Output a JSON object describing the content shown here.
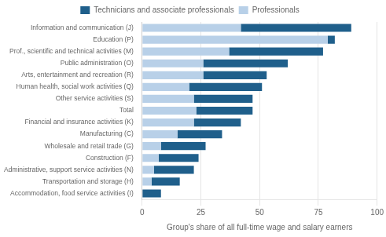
{
  "chart_data": {
    "type": "bar",
    "orientation": "horizontal",
    "stacked": true,
    "categories": [
      "Information and communication (J)",
      "Education (P)",
      "Prof., scientific and technical activities (M)",
      "Public administration (O)",
      "Arts, entertainment and recreation (R)",
      "Human health, social work activities (Q)",
      "Other service activities (S)",
      "Total",
      "Financial and insurance activities (K)",
      "Manufacturing (C)",
      "Wholesale and retail trade (G)",
      "Construction (F)",
      "Administrative, support service activities (N)",
      "Transportation and storage (H)",
      "Accommodation, food service activities (I)"
    ],
    "series": [
      {
        "name": "Professionals",
        "color": "#b8d0e8",
        "values": [
          42,
          79,
          37,
          26,
          26,
          20,
          22,
          23,
          22,
          15,
          8,
          7,
          5,
          4,
          0
        ]
      },
      {
        "name": "Technicians and\nassociate\nprofessionals",
        "color": "#1f5f8b",
        "values": [
          47,
          3,
          40,
          36,
          27,
          31,
          25,
          24,
          20,
          19,
          19,
          17,
          17,
          12,
          8
        ]
      }
    ],
    "xlim": [
      0,
      100
    ],
    "xticks": [
      0,
      25,
      50,
      75,
      100
    ],
    "xlabel": "Group's share of all full-time wage and salary earners",
    "grid": true,
    "legend": "top"
  }
}
